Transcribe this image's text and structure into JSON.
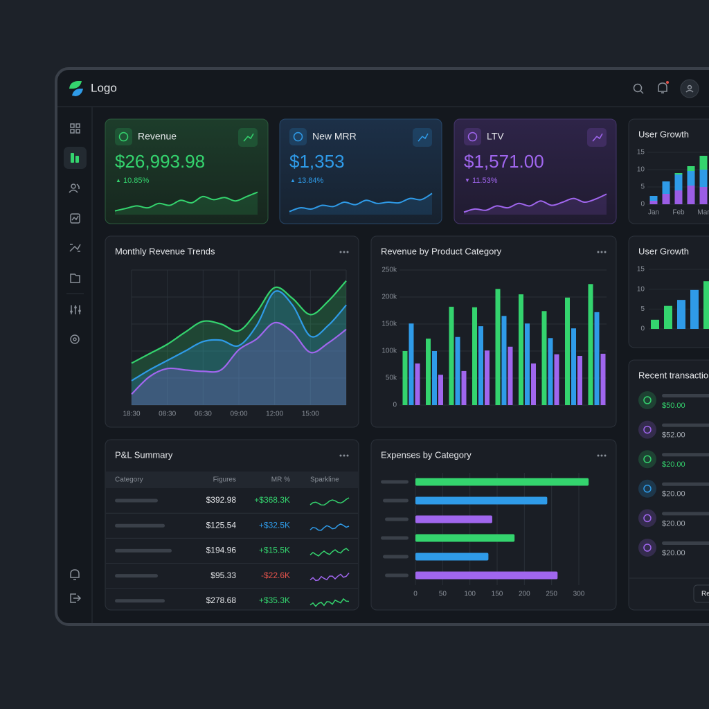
{
  "header": {
    "logo": "Logo"
  },
  "kpis": [
    {
      "title": "Revenue",
      "value": "$26,993.98",
      "change": "10.85%",
      "direction": "up",
      "color": "#34d46e",
      "sparkline": [
        12,
        20,
        28,
        22,
        36,
        30,
        46,
        38,
        58,
        48,
        55,
        44,
        58,
        72
      ]
    },
    {
      "title": "New MRR",
      "value": "$1,353",
      "change": "13.84%",
      "direction": "up",
      "color": "#2f9be8",
      "sparkline": [
        10,
        22,
        18,
        30,
        26,
        40,
        32,
        46,
        36,
        40,
        38,
        52,
        48,
        68
      ]
    },
    {
      "title": "LTV",
      "value": "$1,571.00",
      "change": "11.53%",
      "direction": "down",
      "color": "#a066ee",
      "sparkline": [
        8,
        18,
        14,
        28,
        22,
        36,
        28,
        44,
        30,
        40,
        52,
        40,
        50,
        66
      ]
    }
  ],
  "chart_data": [
    {
      "type": "stacked_bar",
      "title": "User Growth",
      "categories": [
        "Jan",
        null,
        "Feb",
        null,
        "Mar"
      ],
      "series": [
        {
          "color": "#9b5de5",
          "values": [
            1,
            3,
            4,
            5.4,
            5
          ]
        },
        {
          "color": "#2f9be8",
          "values": [
            1.4,
            3.6,
            4.6,
            4.2,
            5
          ]
        },
        {
          "color": "#34d46e",
          "values": [
            0,
            0,
            0.4,
            1.4,
            4
          ]
        }
      ],
      "ylim": [
        0,
        15
      ],
      "yticks": [
        0,
        5,
        10,
        15
      ]
    },
    {
      "type": "area",
      "title": "Monthly Revenue Trends",
      "categories": [
        "18:30",
        null,
        "08:30",
        null,
        "06:30",
        null,
        "09:00",
        null,
        "12:00",
        null,
        "15:00",
        null,
        null
      ],
      "series": [
        {
          "color": "#34d46e",
          "values": [
            31,
            38,
            45,
            54,
            62,
            60,
            55,
            69,
            87,
            79,
            67,
            77,
            92
          ]
        },
        {
          "color": "#2f9be8",
          "values": [
            18,
            26,
            33,
            40,
            47,
            48,
            44,
            59,
            84,
            74,
            51,
            59,
            74
          ]
        },
        {
          "color": "#a066ee",
          "values": [
            8,
            21,
            27,
            26,
            25,
            26,
            41,
            49,
            61,
            54,
            39,
            46,
            56
          ]
        }
      ],
      "ylim": [
        0,
        100
      ],
      "grid": true
    },
    {
      "type": "grouped_bar",
      "title": "Revenue by Product Category",
      "categories": [
        null,
        null,
        null,
        null,
        null,
        null,
        null,
        null,
        null
      ],
      "series": [
        {
          "color": "#34d46e",
          "values": [
            100000,
            123000,
            182000,
            181000,
            215000,
            205000,
            174000,
            199000,
            224000
          ]
        },
        {
          "color": "#2f9be8",
          "values": [
            151000,
            100000,
            126000,
            146000,
            165000,
            151000,
            124000,
            142000,
            172000
          ]
        },
        {
          "color": "#a066ee",
          "values": [
            77000,
            56000,
            63000,
            101000,
            108000,
            77000,
            94000,
            91000,
            95000
          ]
        }
      ],
      "ylim": [
        0,
        250000
      ],
      "yticks": [
        0,
        {
          "value": 50000,
          "label": "50k"
        },
        {
          "value": 100000,
          "label": "100k"
        },
        {
          "value": 150000,
          "label": "150k"
        },
        {
          "value": 200000,
          "label": "200k"
        },
        {
          "value": 250000,
          "label": "250k"
        }
      ],
      "grid": true
    },
    {
      "type": "bar",
      "title": "User Growth",
      "categories": [
        null,
        null,
        null,
        null,
        null
      ],
      "values": [
        2.3,
        5.8,
        7.3,
        9.8,
        12
      ],
      "colors": [
        "#34d46e",
        "#34d46e",
        "#2f9be8",
        "#2f9be8",
        "#34d46e"
      ],
      "ylim": [
        0,
        15
      ],
      "yticks": [
        0,
        5,
        10,
        15
      ]
    },
    {
      "type": "hbar",
      "title": "Expenses by Category",
      "categories": [
        null,
        null,
        null,
        null,
        null,
        null
      ],
      "values": [
        318,
        242,
        141,
        182,
        134,
        261
      ],
      "colors": [
        "#34d46e",
        "#2f9be8",
        "#a066ee",
        "#34d46e",
        "#2f9be8",
        "#a066ee"
      ],
      "xlim": [
        0,
        300
      ],
      "xticks": [
        0,
        50,
        100,
        150,
        200,
        250,
        300
      ],
      "grid": true
    }
  ],
  "pl_summary": {
    "title": "P&L Summary",
    "columns": [
      "Category",
      "Figures",
      "MR %",
      "Sparkline"
    ],
    "rows": [
      {
        "figure": "$392.98",
        "mr": "+$368.3K",
        "color": "#34d46e"
      },
      {
        "figure": "$125.54",
        "mr": "+$32.5K",
        "color": "#2f9be8"
      },
      {
        "figure": "$194.96",
        "mr": "+$15.5K",
        "color": "#34d46e"
      },
      {
        "figure": "$95.33",
        "mr": "-$22.6K",
        "color": "#e5534b",
        "spark": "#a066ee"
      },
      {
        "figure": "$278.68",
        "mr": "+$35.3K",
        "color": "#34d46e"
      }
    ]
  },
  "transactions": {
    "title": "Recent transactions",
    "button": "Re",
    "items": [
      {
        "amount": "$50.00",
        "icon": "#34d46e",
        "color": "#34d46e"
      },
      {
        "amount": "$52.00",
        "icon": "#a066ee",
        "color": "#aab0b8"
      },
      {
        "amount": "$20.00",
        "icon": "#34d46e",
        "color": "#34d46e"
      },
      {
        "amount": "$20.00",
        "icon": "#2f9be8",
        "color": "#aab0b8"
      },
      {
        "amount": "$20.00",
        "icon": "#a066ee",
        "color": "#aab0b8"
      },
      {
        "amount": "$20.00",
        "icon": "#a066ee",
        "color": "#aab0b8"
      }
    ]
  }
}
